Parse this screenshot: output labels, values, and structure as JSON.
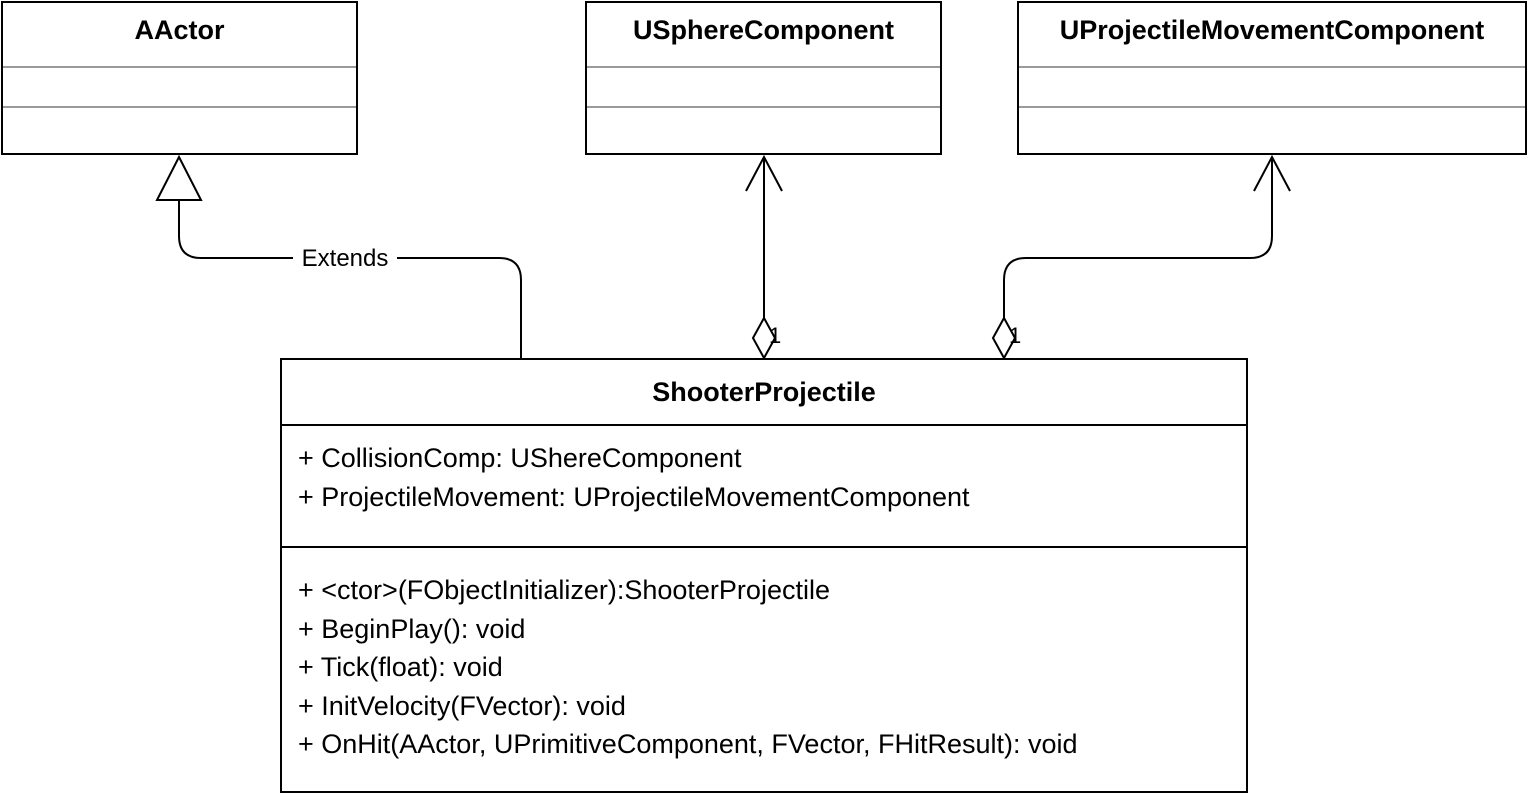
{
  "classes": {
    "aactor": {
      "name": "AActor"
    },
    "usphere": {
      "name": "USphereComponent"
    },
    "uprojmove": {
      "name": "UProjectileMovementComponent"
    },
    "shooter": {
      "name": "ShooterProjectile",
      "attributes": [
        "+ CollisionComp: UShereComponent",
        "+ ProjectileMovement: UProjectileMovementComponent"
      ],
      "operations": [
        "+ <ctor>(FObjectInitializer):ShooterProjectile",
        "+ BeginPlay(): void",
        "+ Tick(float): void",
        "+ InitVelocity(FVector): void",
        "+ OnHit(AActor, UPrimitiveComponent, FVector, FHitResult): void"
      ]
    }
  },
  "relations": {
    "extends": {
      "label": "Extends"
    },
    "collision": {
      "multiplicity": "1"
    },
    "movement": {
      "multiplicity": "1"
    }
  }
}
